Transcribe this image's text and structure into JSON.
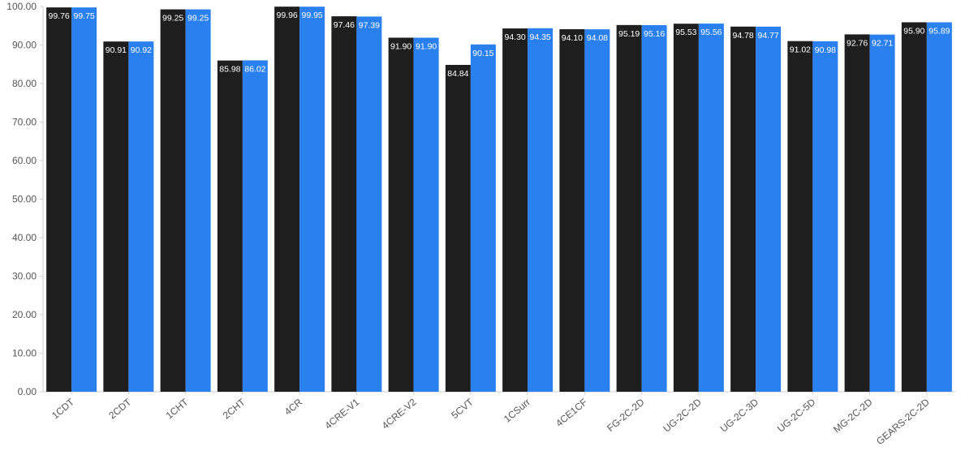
{
  "chart_data": {
    "type": "bar",
    "title": "",
    "xlabel": "",
    "ylabel": "",
    "ylim": [
      0,
      100
    ],
    "yticks": [
      "0.00",
      "10.00",
      "20.00",
      "30.00",
      "40.00",
      "50.00",
      "60.00",
      "70.00",
      "80.00",
      "90.00",
      "100.00"
    ],
    "grid": false,
    "categories": [
      "1CDT",
      "2CDT",
      "1CHT",
      "2CHT",
      "4CR",
      "4CRE-V1",
      "4CRE-V2",
      "5CVT",
      "1CSurr",
      "4CE1CF",
      "FG-2C-2D",
      "UG-2C-2D",
      "UG-2C-3D",
      "UG-2C-5D",
      "MG-2C-2D",
      "GEARS-2C-2D"
    ],
    "series": [
      {
        "color": "#1e1e1e",
        "values": [
          99.76,
          90.91,
          99.25,
          85.98,
          99.96,
          97.46,
          91.9,
          84.84,
          94.3,
          94.1,
          95.19,
          95.53,
          94.78,
          91.02,
          92.76,
          95.9
        ],
        "labels": [
          "99.76",
          "90.91",
          "99.25",
          "85.98",
          "99.96",
          "97.46",
          "91.90",
          "84.84",
          "94.30",
          "94.10",
          "95.19",
          "95.53",
          "94.78",
          "91.02",
          "92.76",
          "95.90"
        ]
      },
      {
        "color": "#2b80f0",
        "values": [
          99.75,
          90.92,
          99.25,
          86.02,
          99.95,
          97.39,
          91.9,
          90.15,
          94.35,
          94.08,
          95.16,
          95.56,
          94.77,
          90.98,
          92.71,
          95.89
        ],
        "labels": [
          "99.75",
          "90.92",
          "99.25",
          "86.02",
          "99.95",
          "97.39",
          "91.90",
          "90.15",
          "94.35",
          "94.08",
          "95.16",
          "95.56",
          "94.77",
          "90.98",
          "92.71",
          "95.89"
        ]
      }
    ]
  }
}
